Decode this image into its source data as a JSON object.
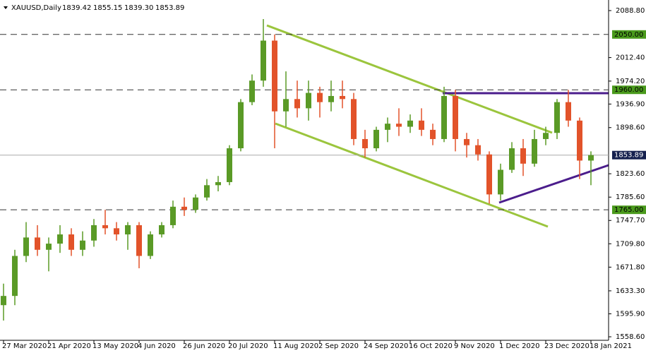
{
  "chart_data": {
    "type": "candlestick",
    "title": "XAUUSD,Daily",
    "header_ohlc": [
      1839.42,
      1855.15,
      {
        "value": 1839.3,
        "label": "1839.30"
      },
      1853.89
    ],
    "up_color": "#5a9a26",
    "down_color": "#e2532a",
    "categories": [
      "27 Mar 2020",
      null,
      null,
      null,
      "21 Apr 2020",
      null,
      null,
      null,
      "13 May 2020",
      null,
      null,
      null,
      "4 Jun 2020",
      null,
      null,
      null,
      "26 Jun 2020",
      null,
      null,
      null,
      "20 Jul 2020",
      null,
      null,
      null,
      "11 Aug 2020",
      null,
      null,
      null,
      "2 Sep 2020",
      null,
      null,
      null,
      "24 Sep 2020",
      null,
      null,
      null,
      "16 Oct 2020",
      null,
      null,
      null,
      "9 Nov 2020",
      null,
      null,
      null,
      "1 Dec 2020",
      null,
      null,
      null,
      "23 Dec 2020",
      null,
      null,
      null,
      "18 Jan 2021"
    ],
    "open": [
      1610,
      1625,
      1690,
      1720,
      1700,
      1710,
      1725,
      1700,
      1715,
      1740,
      1735,
      1725,
      1740,
      1690,
      1725,
      1740,
      1770,
      1765,
      1785,
      1805,
      1810,
      1865,
      1940,
      1975,
      2040,
      1925,
      1945,
      1930,
      1955,
      1940,
      1950,
      1945,
      1880,
      1865,
      1895,
      1905,
      1900,
      1910,
      1895,
      1880,
      1950,
      1880,
      1870,
      1855,
      1790,
      1830,
      1865,
      1840,
      1880,
      1890,
      1940,
      1910,
      1845
    ],
    "high": [
      1645,
      1700,
      1745,
      1740,
      1720,
      1740,
      1735,
      1730,
      1750,
      1765,
      1745,
      1745,
      1745,
      1730,
      1745,
      1780,
      1785,
      1790,
      1815,
      1820,
      1870,
      1945,
      1985,
      2075,
      2050,
      1990,
      1975,
      1975,
      1965,
      1975,
      1975,
      1955,
      1895,
      1900,
      1915,
      1930,
      1920,
      1930,
      1905,
      1965,
      1960,
      1890,
      1880,
      1860,
      1840,
      1875,
      1880,
      1895,
      1900,
      1945,
      1960,
      1915,
      1860
    ],
    "low": [
      1585,
      1610,
      1680,
      1690,
      1665,
      1695,
      1690,
      1690,
      1705,
      1725,
      1715,
      1700,
      1670,
      1685,
      1720,
      1735,
      1755,
      1760,
      1780,
      1795,
      1805,
      1860,
      1935,
      1965,
      1865,
      1900,
      1915,
      1910,
      1915,
      1925,
      1930,
      1870,
      1850,
      1860,
      1875,
      1885,
      1890,
      1885,
      1870,
      1875,
      1860,
      1850,
      1845,
      1775,
      1780,
      1825,
      1820,
      1835,
      1870,
      1880,
      1900,
      1815,
      1805
    ],
    "close": [
      1625,
      1690,
      1720,
      1700,
      1710,
      1725,
      1700,
      1715,
      1740,
      1735,
      1725,
      1740,
      1690,
      1725,
      1740,
      1770,
      1765,
      1785,
      1805,
      1810,
      1865,
      1940,
      1975,
      2040,
      1925,
      1945,
      1930,
      1955,
      1940,
      1950,
      1945,
      1880,
      1865,
      1895,
      1905,
      1900,
      1910,
      1895,
      1880,
      1950,
      1880,
      1870,
      1855,
      1790,
      1830,
      1865,
      1840,
      1880,
      1890,
      1940,
      1910,
      1845,
      1853.89
    ],
    "ylim": [
      1552.9,
      2106.0
    ],
    "yticks": [
      {
        "value": 2088.8,
        "label": "2088.80"
      },
      {
        "value": 2012.4,
        "label": "2012.40"
      },
      {
        "value": 1974.2,
        "label": "1974.20"
      },
      {
        "value": 1936.9,
        "label": "1936.90"
      },
      {
        "value": 1898.6,
        "label": "1898.60"
      },
      {
        "value": 1823.6,
        "label": "1823.60"
      },
      {
        "value": 1785.6,
        "label": "1785.60"
      },
      {
        "value": 1747.7,
        "label": "1747.70"
      },
      {
        "value": 1709.8,
        "label": "1709.80"
      },
      {
        "value": 1671.8,
        "label": "1671.80"
      },
      {
        "value": 1633.3,
        "label": "1633.30"
      },
      {
        "value": 1595.9,
        "label": "1595.90"
      },
      {
        "value": 1558.6,
        "label": "1558.60"
      }
    ],
    "levels": [
      {
        "value": 2050,
        "label": "2050.00"
      },
      {
        "value": 1960,
        "label": "1960.00"
      },
      {
        "value": 1765,
        "label": "1765.00"
      }
    ],
    "level_color": "#4a9a1c",
    "last_price": {
      "value": 1853.89,
      "label": "1853.89"
    },
    "last_price_color": "#16214f"
  }
}
